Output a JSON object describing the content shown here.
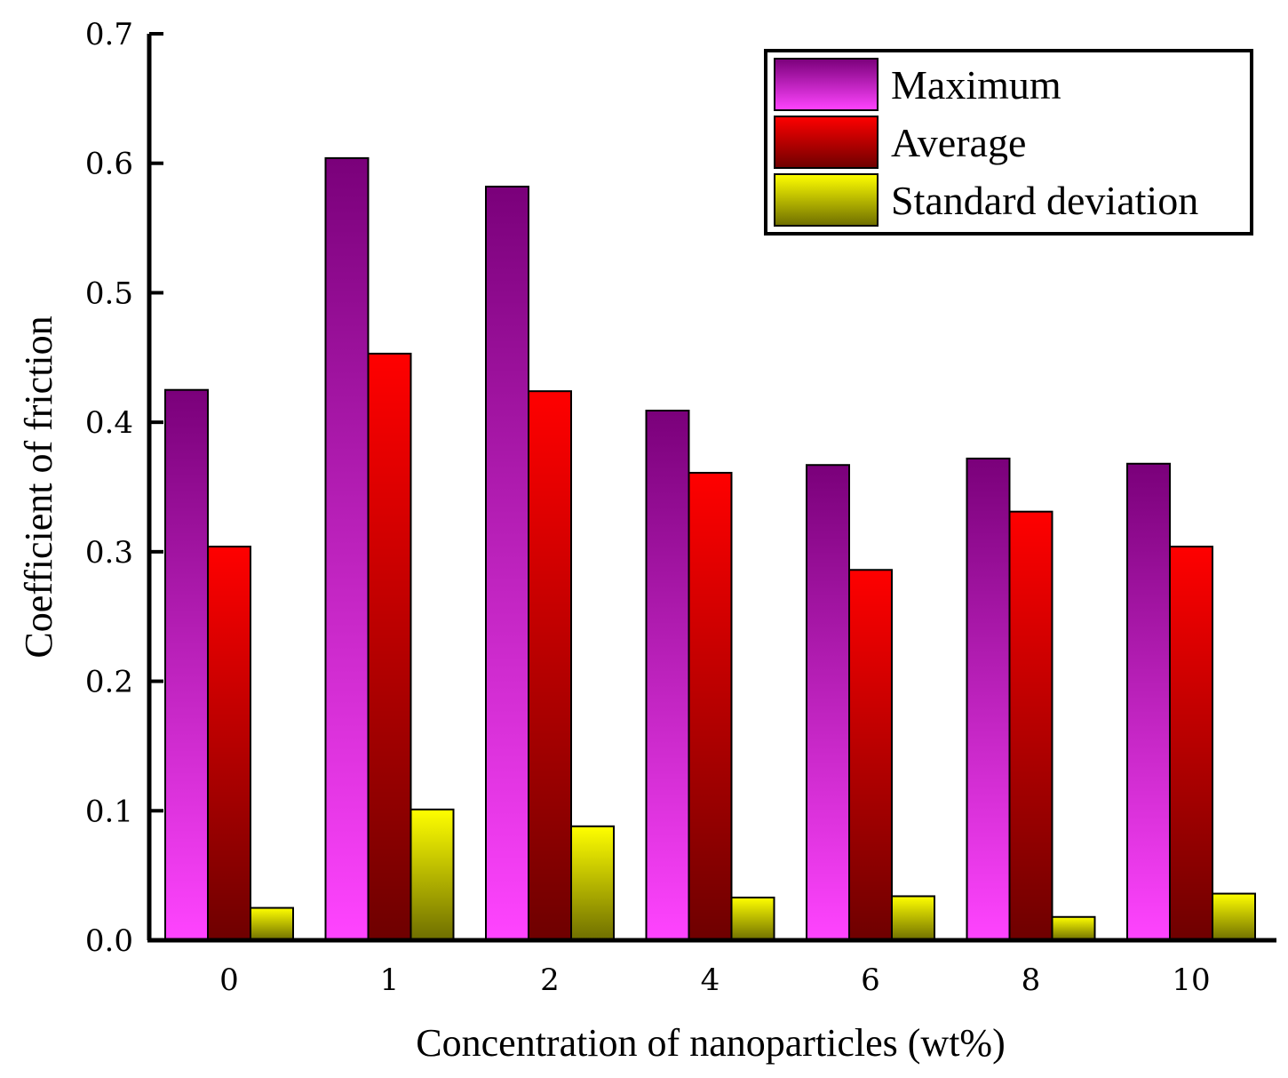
{
  "chart_data": {
    "type": "bar",
    "title": "",
    "xlabel": "Concentration of nanoparticles (wt%)",
    "ylabel": "Coefficient of friction",
    "categories": [
      "0",
      "1",
      "2",
      "4",
      "6",
      "8",
      "10"
    ],
    "ylim": [
      0,
      0.7
    ],
    "yticks": [
      "0.0",
      "0.1",
      "0.2",
      "0.3",
      "0.4",
      "0.5",
      "0.6",
      "0.7"
    ],
    "legend_position": "top-right",
    "series": [
      {
        "name": "Maximum",
        "values": [
          0.425,
          0.604,
          0.582,
          0.409,
          0.367,
          0.372,
          0.368
        ],
        "color_top": "#7a007a",
        "color_bottom": "#ff44ff"
      },
      {
        "name": "Average",
        "values": [
          0.304,
          0.453,
          0.424,
          0.361,
          0.286,
          0.331,
          0.304
        ],
        "color_top": "#ff0000",
        "color_bottom": "#6e0000"
      },
      {
        "name": "Standard deviation",
        "values": [
          0.025,
          0.101,
          0.088,
          0.033,
          0.034,
          0.018,
          0.036
        ],
        "color_top": "#ffff00",
        "color_bottom": "#6e6e00"
      }
    ]
  }
}
